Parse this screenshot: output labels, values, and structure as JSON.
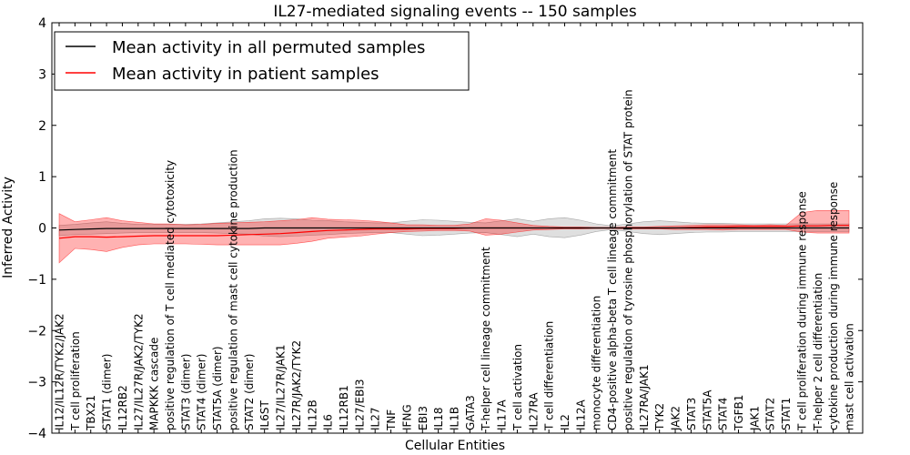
{
  "chart_data": {
    "type": "line",
    "title": "IL27-mediated signaling events -- 150 samples",
    "xlabel": "Cellular Entities",
    "ylabel": "Inferred Activity",
    "ylim": [
      -4,
      4
    ],
    "yticks": [
      4,
      3,
      2,
      1,
      0,
      -1,
      -2,
      -3,
      -4
    ],
    "ytick_labels": [
      "4",
      "3",
      "2",
      "1",
      "0",
      "−1",
      "−2",
      "−3",
      "−4"
    ],
    "grid": false,
    "legend_position": "top-left",
    "categories": [
      "IL12/IL12R/TYK2/JAK2",
      "T cell proliferation",
      "TBX21",
      "STAT1 (dimer)",
      "IL12RB2",
      "IL27/IL27R/JAK2/TYK2",
      "MAPKKK cascade",
      "positive regulation of T cell mediated cytotoxicity",
      "STAT3 (dimer)",
      "STAT4 (dimer)",
      "STAT5A (dimer)",
      "positive regulation of mast cell cytokine production",
      "STAT2 (dimer)",
      "IL6ST",
      "IL27/IL27R/JAK1",
      "IL27R/JAK2/TYK2",
      "IL12B",
      "IL6",
      "IL12RB1",
      "IL27/EBI3",
      "IL27",
      "TNF",
      "IFNG",
      "EBI3",
      "IL18",
      "IL1B",
      "GATA3",
      "T-helper cell lineage commitment",
      "IL17A",
      "T cell activation",
      "IL27RA",
      "T cell differentiation",
      "IL2",
      "IL12A",
      "monocyte differentiation",
      "CD4-positive alpha-beta T cell lineage commitment",
      "positive regulation of tyrosine phosphorylation of STAT protein",
      "IL27RA/JAK1",
      "TYK2",
      "JAK2",
      "STAT3",
      "STAT5A",
      "STAT4",
      "TGFB1",
      "JAK1",
      "STAT2",
      "STAT1",
      "T cell proliferation during immune response",
      "T-helper 2 cell differentiation",
      "cytokine production during immune response",
      "mast cell activation"
    ],
    "series": [
      {
        "name": "Mean activity in all permuted samples",
        "color": "#000000",
        "values": [
          -0.04,
          -0.03,
          -0.02,
          -0.01,
          -0.01,
          -0.01,
          -0.01,
          -0.01,
          -0.01,
          -0.01,
          -0.01,
          -0.01,
          -0.01,
          0.0,
          0.0,
          0.0,
          0.0,
          0.0,
          0.0,
          0.0,
          0.0,
          0.0,
          0.0,
          0.0,
          0.0,
          0.0,
          0.0,
          0.0,
          0.0,
          0.0,
          0.0,
          0.0,
          0.0,
          0.0,
          0.0,
          0.0,
          0.0,
          0.0,
          0.0,
          0.0,
          0.0,
          0.0,
          0.0,
          0.0,
          0.0,
          0.0,
          0.0,
          0.0,
          0.0,
          0.0,
          0.0
        ],
        "band_upper": [
          0.05,
          0.07,
          0.1,
          0.12,
          0.09,
          0.07,
          0.07,
          0.07,
          0.07,
          0.08,
          0.1,
          0.12,
          0.14,
          0.18,
          0.19,
          0.18,
          0.15,
          0.14,
          0.12,
          0.11,
          0.1,
          0.1,
          0.13,
          0.16,
          0.15,
          0.13,
          0.11,
          0.1,
          0.14,
          0.18,
          0.13,
          0.18,
          0.2,
          0.15,
          0.08,
          0.04,
          0.08,
          0.12,
          0.14,
          0.12,
          0.1,
          0.09,
          0.09,
          0.08,
          0.08,
          0.08,
          0.08,
          0.08,
          0.08,
          0.08,
          0.08
        ],
        "band_lower": [
          -0.15,
          -0.13,
          -0.12,
          -0.11,
          -0.1,
          -0.09,
          -0.09,
          -0.09,
          -0.09,
          -0.09,
          -0.1,
          -0.11,
          -0.12,
          -0.16,
          -0.17,
          -0.16,
          -0.14,
          -0.13,
          -0.11,
          -0.1,
          -0.09,
          -0.09,
          -0.12,
          -0.15,
          -0.14,
          -0.12,
          -0.1,
          -0.09,
          -0.13,
          -0.17,
          -0.12,
          -0.17,
          -0.19,
          -0.14,
          -0.07,
          -0.03,
          -0.07,
          -0.11,
          -0.13,
          -0.11,
          -0.09,
          -0.08,
          -0.08,
          -0.07,
          -0.07,
          -0.07,
          -0.07,
          -0.07,
          -0.07,
          -0.07,
          -0.07
        ]
      },
      {
        "name": "Mean activity in patient samples",
        "color": "#ff0000",
        "values": [
          -0.2,
          -0.17,
          -0.17,
          -0.18,
          -0.17,
          -0.16,
          -0.15,
          -0.15,
          -0.15,
          -0.15,
          -0.15,
          -0.14,
          -0.13,
          -0.12,
          -0.11,
          -0.09,
          -0.07,
          -0.05,
          -0.04,
          -0.03,
          -0.02,
          -0.02,
          -0.02,
          -0.01,
          -0.01,
          -0.01,
          0.0,
          0.0,
          0.0,
          0.0,
          0.0,
          0.0,
          0.0,
          0.0,
          0.0,
          0.0,
          0.0,
          0.0,
          0.0,
          0.0,
          0.01,
          0.02,
          0.02,
          0.03,
          0.03,
          0.03,
          0.03,
          0.04,
          0.04,
          0.05,
          0.05
        ],
        "band_upper": [
          0.28,
          0.12,
          0.16,
          0.2,
          0.14,
          0.11,
          0.08,
          0.08,
          0.06,
          0.07,
          0.09,
          0.1,
          0.11,
          0.12,
          0.14,
          0.16,
          0.2,
          0.17,
          0.16,
          0.15,
          0.13,
          0.1,
          0.06,
          0.06,
          0.05,
          0.05,
          0.08,
          0.18,
          0.15,
          0.1,
          0.05,
          0.03,
          0.02,
          0.02,
          0.01,
          0.01,
          0.02,
          0.02,
          0.03,
          0.04,
          0.05,
          0.06,
          0.06,
          0.06,
          0.05,
          0.06,
          0.05,
          0.3,
          0.34,
          0.34,
          0.34
        ],
        "band_lower": [
          -0.68,
          -0.4,
          -0.42,
          -0.46,
          -0.38,
          -0.33,
          -0.31,
          -0.31,
          -0.31,
          -0.32,
          -0.33,
          -0.33,
          -0.33,
          -0.33,
          -0.33,
          -0.3,
          -0.26,
          -0.2,
          -0.18,
          -0.16,
          -0.12,
          -0.09,
          -0.07,
          -0.06,
          -0.05,
          -0.05,
          -0.06,
          -0.14,
          -0.12,
          -0.08,
          -0.04,
          -0.03,
          -0.02,
          -0.02,
          -0.01,
          -0.01,
          -0.02,
          -0.02,
          -0.02,
          -0.03,
          -0.03,
          -0.03,
          -0.04,
          -0.03,
          -0.03,
          -0.03,
          -0.03,
          -0.08,
          -0.1,
          -0.1,
          -0.1
        ]
      }
    ]
  }
}
